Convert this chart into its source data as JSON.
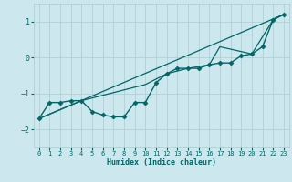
{
  "xlabel": "Humidex (Indice chaleur)",
  "ylabel": "",
  "xlim": [
    -0.5,
    23.5
  ],
  "ylim": [
    -2.5,
    1.5
  ],
  "yticks": [
    -2,
    -1,
    0,
    1
  ],
  "xticks": [
    0,
    1,
    2,
    3,
    4,
    5,
    6,
    7,
    8,
    9,
    10,
    11,
    12,
    13,
    14,
    15,
    16,
    17,
    18,
    19,
    20,
    21,
    22,
    23
  ],
  "bg_color": "#cce8ee",
  "grid_color": "#aacccc",
  "line_color": "#006666",
  "series": [
    {
      "x": [
        0,
        1,
        2,
        3,
        4,
        5,
        6,
        7,
        8,
        9,
        10,
        11,
        12,
        13,
        14,
        15,
        16,
        17,
        18,
        19,
        20,
        21,
        22,
        23
      ],
      "y": [
        -1.7,
        -1.25,
        -1.25,
        -1.2,
        -1.2,
        -1.5,
        -1.6,
        -1.65,
        -1.65,
        -1.25,
        -1.25,
        -0.7,
        -0.45,
        -0.3,
        -0.3,
        -0.3,
        -0.2,
        -0.15,
        -0.15,
        0.05,
        0.1,
        0.3,
        1.05,
        1.2
      ],
      "marker": "D",
      "markersize": 2.5,
      "linewidth": 1.0
    },
    {
      "x": [
        0,
        4,
        10,
        12,
        14,
        16,
        17,
        20,
        22,
        23
      ],
      "y": [
        -1.7,
        -1.2,
        -0.75,
        -0.45,
        -0.3,
        -0.2,
        0.3,
        0.1,
        1.05,
        1.2
      ],
      "marker": null,
      "markersize": 0,
      "linewidth": 0.9
    },
    {
      "x": [
        0,
        23
      ],
      "y": [
        -1.7,
        1.2
      ],
      "marker": null,
      "markersize": 0,
      "linewidth": 0.9
    }
  ]
}
